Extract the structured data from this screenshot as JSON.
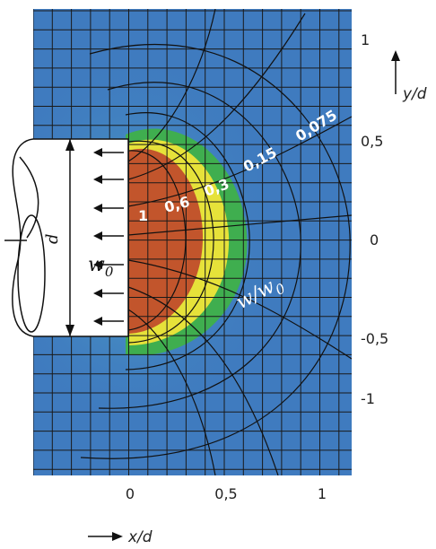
{
  "figure": {
    "x_ticks": [
      "0",
      "0,5",
      "1"
    ],
    "y_ticks": [
      "1",
      "0,5",
      "0",
      "-0,5",
      "-1"
    ],
    "x_axis_label": "x/d",
    "y_axis_label": "y/d",
    "contour_labels": [
      "1",
      "0,6",
      "0,3",
      "0,15",
      "0,075"
    ],
    "ratio_label": "w/w",
    "ratio_label_sub": "0",
    "source_label": "w",
    "source_label_sub": "0",
    "dimension_label": "d",
    "colors": {
      "field_blue": "#3f7bbf",
      "field_cyan": "#4aa6c6",
      "field_green": "#3fae4f",
      "field_yellow": "#e6e23a",
      "field_red": "#c2552c",
      "grid_lines": "#1a1a1a"
    }
  }
}
